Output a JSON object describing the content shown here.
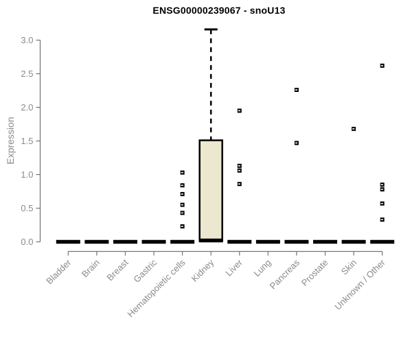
{
  "chart_data": {
    "type": "boxplot",
    "title": "ENSG00000239067 - snoU13",
    "ylabel": "Expression",
    "xlabel": "",
    "ylim": [
      0.0,
      3.0
    ],
    "yticks": [
      "0.0",
      "0.5",
      "1.0",
      "1.5",
      "2.0",
      "2.5",
      "3.0"
    ],
    "grid": false,
    "legend": null,
    "categories": [
      "Bladder",
      "Brain",
      "Breast",
      "Gastric",
      "Hematopoietic cells",
      "Kidney",
      "Liver",
      "Lung",
      "Pancreas",
      "Prostate",
      "Skin",
      "Unknown / Other"
    ],
    "boxes": [
      {
        "category": "Bladder",
        "q1": 0,
        "median": 0,
        "q3": 0,
        "whisker_low": 0,
        "whisker_high": 0,
        "outliers": []
      },
      {
        "category": "Brain",
        "q1": 0,
        "median": 0,
        "q3": 0,
        "whisker_low": 0,
        "whisker_high": 0,
        "outliers": []
      },
      {
        "category": "Breast",
        "q1": 0,
        "median": 0,
        "q3": 0,
        "whisker_low": 0,
        "whisker_high": 0,
        "outliers": []
      },
      {
        "category": "Gastric",
        "q1": 0,
        "median": 0,
        "q3": 0,
        "whisker_low": 0,
        "whisker_high": 0,
        "outliers": []
      },
      {
        "category": "Hematopoietic cells",
        "q1": 0,
        "median": 0,
        "q3": 0,
        "whisker_low": 0,
        "whisker_high": 0,
        "outliers": [
          1.03,
          0.84,
          0.71,
          0.55,
          0.43,
          0.23
        ]
      },
      {
        "category": "Kidney",
        "q1": 0.02,
        "median": 0.02,
        "q3": 1.51,
        "whisker_low": 0,
        "whisker_high": 3.16,
        "outliers": []
      },
      {
        "category": "Liver",
        "q1": 0,
        "median": 0,
        "q3": 0,
        "whisker_low": 0,
        "whisker_high": 0,
        "outliers": [
          1.95,
          1.13,
          1.06,
          0.86
        ]
      },
      {
        "category": "Lung",
        "q1": 0,
        "median": 0,
        "q3": 0,
        "whisker_low": 0,
        "whisker_high": 0,
        "outliers": []
      },
      {
        "category": "Pancreas",
        "q1": 0,
        "median": 0,
        "q3": 0,
        "whisker_low": 0,
        "whisker_high": 0,
        "outliers": [
          2.26,
          1.47
        ]
      },
      {
        "category": "Prostate",
        "q1": 0,
        "median": 0,
        "q3": 0,
        "whisker_low": 0,
        "whisker_high": 0,
        "outliers": []
      },
      {
        "category": "Skin",
        "q1": 0,
        "median": 0,
        "q3": 0,
        "whisker_low": 0,
        "whisker_high": 0,
        "outliers": [
          1.68
        ]
      },
      {
        "category": "Unknown / Other",
        "q1": 0,
        "median": 0,
        "q3": 0,
        "whisker_low": 0,
        "whisker_high": 0,
        "outliers": [
          2.62,
          0.85,
          0.78,
          0.57,
          0.33
        ]
      }
    ],
    "colors": {
      "box_fill": "#ece7cf",
      "box_stroke": "#000000",
      "median": "#000000",
      "whisker": "#000000",
      "outlier": "#000000",
      "axis": "#737373",
      "tick_label": "#8a8a8a",
      "title": "#000000"
    }
  }
}
